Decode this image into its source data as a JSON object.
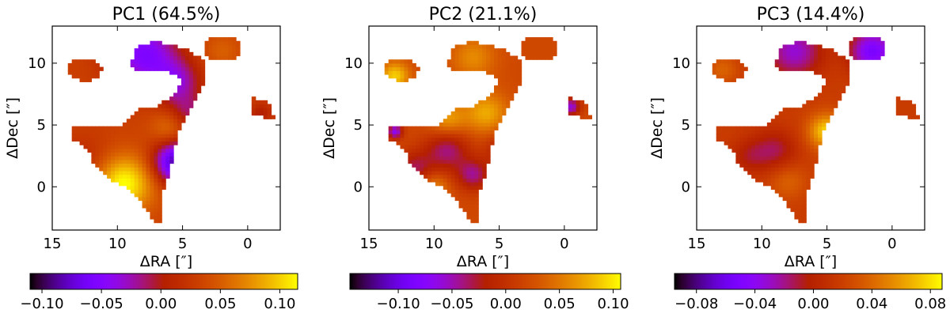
{
  "chart_data": [
    {
      "type": "heatmap",
      "title": "PC1 (64.5%)",
      "xlabel": "ΔRA [″]",
      "ylabel": "ΔDec [″]",
      "xlim": [
        15,
        -2.5
      ],
      "ylim": [
        -3.5,
        13
      ],
      "xticks": [
        15,
        10,
        5,
        0
      ],
      "yticks": [
        0,
        5,
        10
      ],
      "xtick_labels": [
        "15",
        "10",
        "5",
        "0"
      ],
      "ytick_labels": [
        "0",
        "5",
        "10"
      ],
      "colorbar": {
        "range": [
          -0.11,
          0.115
        ],
        "ticks": [
          -0.1,
          -0.05,
          0.0,
          0.05,
          0.1
        ],
        "tick_labels": [
          "−0.10",
          "−0.05",
          "0.00",
          "0.05",
          "0.10"
        ]
      },
      "colormap": "gnuplot",
      "grid": false,
      "pattern": {
        "base": 0.032,
        "blobs": [
          {
            "x": 5.5,
            "y": 2.0,
            "a": -0.12,
            "s": 1.2
          },
          {
            "x": 9.5,
            "y": 0.3,
            "a": 0.085,
            "s": 1.6
          },
          {
            "x": 8.0,
            "y": 10.8,
            "a": -0.085,
            "s": 1.8
          },
          {
            "x": 5.5,
            "y": 8.5,
            "a": -0.06,
            "s": 1.3
          },
          {
            "x": 2.0,
            "y": 11.0,
            "a": 0.02,
            "s": 1.0
          },
          {
            "x": -1.0,
            "y": 6.0,
            "a": -0.03,
            "s": 0.6
          },
          {
            "x": 12.5,
            "y": 2.0,
            "a": -0.02,
            "s": 1.5
          },
          {
            "x": 4.5,
            "y": 6.0,
            "a": -0.04,
            "s": 1.0
          },
          {
            "x": 6.0,
            "y": 4.8,
            "a": 0.03,
            "s": 1.0
          }
        ]
      }
    },
    {
      "type": "heatmap",
      "title": "PC2 (21.1%)",
      "xlabel": "ΔRA [″]",
      "ylabel": "ΔDec [″]",
      "xlim": [
        15,
        -2.5
      ],
      "ylim": [
        -3.5,
        13
      ],
      "xticks": [
        15,
        10,
        5,
        0
      ],
      "yticks": [
        0,
        5,
        10
      ],
      "xtick_labels": [
        "15",
        "10",
        "5",
        "0"
      ],
      "ytick_labels": [
        "0",
        "5",
        "10"
      ],
      "colorbar": {
        "range": [
          -0.145,
          0.107
        ],
        "ticks": [
          -0.1,
          -0.05,
          0.0,
          0.05,
          0.1
        ],
        "tick_labels": [
          "−0.10",
          "−0.05",
          "0.00",
          "0.05",
          "0.10"
        ]
      },
      "colormap": "gnuplot",
      "grid": false,
      "pattern": {
        "base": 0.02,
        "blobs": [
          {
            "x": 9.0,
            "y": 3.0,
            "a": -0.06,
            "s": 1.2
          },
          {
            "x": 11.5,
            "y": 1.5,
            "a": -0.05,
            "s": 1.0
          },
          {
            "x": 7.0,
            "y": 1.0,
            "a": -0.06,
            "s": 0.9
          },
          {
            "x": 6.0,
            "y": 6.0,
            "a": 0.055,
            "s": 1.2
          },
          {
            "x": 9.0,
            "y": 5.5,
            "a": 0.05,
            "s": 1.0
          },
          {
            "x": 13.0,
            "y": 9.0,
            "a": 0.07,
            "s": 0.8
          },
          {
            "x": 7.0,
            "y": 10.5,
            "a": 0.04,
            "s": 1.2
          },
          {
            "x": 4.5,
            "y": 3.0,
            "a": -0.05,
            "s": 1.0
          },
          {
            "x": 10.0,
            "y": 0.0,
            "a": 0.04,
            "s": 0.8
          },
          {
            "x": -0.5,
            "y": 6.5,
            "a": -0.08,
            "s": 0.5
          },
          {
            "x": 13.0,
            "y": 4.5,
            "a": -0.09,
            "s": 0.4
          }
        ]
      }
    },
    {
      "type": "heatmap",
      "title": "PC3 (14.4%)",
      "xlabel": "ΔRA [″]",
      "ylabel": "ΔDec [″]",
      "xlim": [
        15,
        -2.5
      ],
      "ylim": [
        -3.5,
        13
      ],
      "xticks": [
        15,
        10,
        5,
        0
      ],
      "yticks": [
        0,
        5,
        10
      ],
      "xtick_labels": [
        "15",
        "10",
        "5",
        "0"
      ],
      "ytick_labels": [
        "0",
        "5",
        "10"
      ],
      "colorbar": {
        "range": [
          -0.095,
          0.088
        ],
        "ticks": [
          -0.08,
          -0.04,
          0.0,
          0.04,
          0.08
        ],
        "tick_labels": [
          "−0.08",
          "−0.04",
          "0.00",
          "0.04",
          "0.08"
        ]
      },
      "colormap": "gnuplot",
      "grid": false,
      "pattern": {
        "base": 0.018,
        "blobs": [
          {
            "x": 1.5,
            "y": 11.0,
            "a": -0.07,
            "s": 1.2
          },
          {
            "x": 7.5,
            "y": 11.0,
            "a": -0.05,
            "s": 1.5
          },
          {
            "x": 5.0,
            "y": 4.5,
            "a": 0.06,
            "s": 1.0
          },
          {
            "x": 9.0,
            "y": 3.0,
            "a": -0.03,
            "s": 1.2
          },
          {
            "x": 11.0,
            "y": 2.5,
            "a": -0.02,
            "s": 1.0
          },
          {
            "x": 3.0,
            "y": 6.0,
            "a": -0.07,
            "s": 0.4
          },
          {
            "x": 13.0,
            "y": 9.5,
            "a": 0.02,
            "s": 0.8
          },
          {
            "x": 8.0,
            "y": 0.5,
            "a": 0.02,
            "s": 1.0
          }
        ]
      }
    }
  ]
}
